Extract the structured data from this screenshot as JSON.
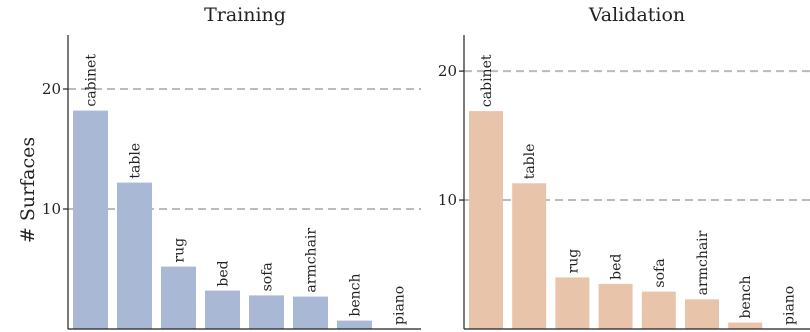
{
  "chart_data": [
    {
      "type": "bar",
      "title": "Training",
      "ylabel": "# Surfaces",
      "categories": [
        "cabinet",
        "table",
        "rug",
        "bed",
        "sofa",
        "armchair",
        "bench",
        "piano"
      ],
      "values": [
        18.2,
        12.2,
        5.2,
        3.2,
        2.8,
        2.7,
        0.7,
        0
      ],
      "yticks": [
        "10",
        "20"
      ],
      "ylim": [
        0,
        24.5
      ],
      "grid": "horizontal dashed at ticks",
      "color": "#a9b9d5"
    },
    {
      "type": "bar",
      "title": "Validation",
      "categories": [
        "cabinet",
        "table",
        "rug",
        "bed",
        "sofa",
        "armchair",
        "bench",
        "piano"
      ],
      "values": [
        16.9,
        11.3,
        4.0,
        3.5,
        2.9,
        2.3,
        0.5,
        0
      ],
      "yticks": [
        "10",
        "20"
      ],
      "ylim": [
        0,
        22.8
      ],
      "grid": "horizontal dashed at ticks",
      "color": "#e8c4ab"
    }
  ]
}
